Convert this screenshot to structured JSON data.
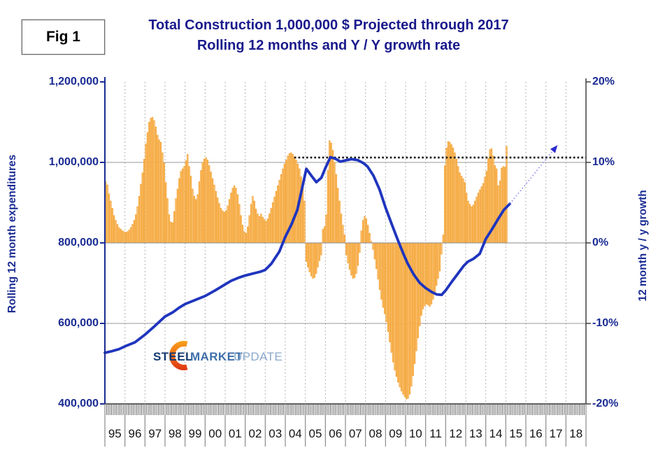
{
  "fig_label": "Fig 1",
  "title": {
    "line1": "Total Construction 1,000,000 $ Projected through 2017",
    "line2": "Rolling 12 months and Y / Y growth rate"
  },
  "axes": {
    "left": {
      "title": "Rolling 12 month expenditures",
      "ticks": [
        "1,200,000",
        "1,000,000",
        "800,000",
        "600,000",
        "400,000"
      ]
    },
    "right": {
      "title": "12 month y / y growth",
      "ticks": [
        "20%",
        "10%",
        "0%",
        "-10%",
        "-20%"
      ]
    },
    "x": {
      "years": [
        "95",
        "96",
        "97",
        "98",
        "99",
        "00",
        "01",
        "02",
        "03",
        "04",
        "05",
        "06",
        "07",
        "08",
        "09",
        "10",
        "11",
        "12",
        "13",
        "14",
        "15",
        "16",
        "17",
        "18"
      ]
    }
  },
  "logo": {
    "part1": "STEEL",
    "part2": "MARKET",
    "part3": "UPDATE"
  },
  "colors": {
    "title_navy": "#1a1a8c",
    "axis_navy": "#1b2c94",
    "bar_fill": "#FCC579",
    "bar_stroke": "#F09619",
    "line_blue": "#1F35BE",
    "projection_blue": "#8080EE",
    "reference_black": "#111111",
    "grid_gray": "#9a9a9a",
    "grid_dash_gray": "#b5b5b5",
    "logo_orange_top": "#F9A11B",
    "logo_orange_bottom": "#E03514",
    "logo_steel": "#153A70",
    "logo_market": "#3F6FA8",
    "logo_update": "#8AA9CC"
  },
  "chart_data": {
    "type": "combo",
    "x_axis": {
      "start_year": 1995,
      "end_year": 2018,
      "frequency": "monthly"
    },
    "left_axis": {
      "label": "Rolling 12 month expenditures",
      "min": 400000,
      "max": 1200000,
      "tick_step": 200000
    },
    "right_axis": {
      "label": "12 month y / y growth",
      "min": -20,
      "max": 20,
      "tick_step": 10,
      "unit": "%"
    },
    "grid": {
      "horizontal": "solid at 10%, 0%, -10%",
      "vertical": "dashed at each year"
    },
    "series": [
      {
        "name": "12 month y / y growth rate",
        "type": "bar",
        "axis": "right",
        "unit": "%",
        "start": "1995-01",
        "frequency": "monthly",
        "values": [
          7.6,
          7.2,
          6.1,
          5.2,
          4.3,
          3.4,
          2.8,
          2.3,
          1.9,
          1.7,
          1.5,
          1.4,
          1.3,
          1.4,
          1.6,
          1.9,
          2.3,
          2.8,
          3.5,
          4.5,
          5.8,
          7.3,
          8.7,
          10.4,
          12.3,
          13.7,
          15.0,
          15.5,
          15.6,
          15.2,
          14.4,
          13.4,
          12.8,
          12.5,
          11.2,
          9.9,
          7.5,
          5.5,
          3.5,
          2.6,
          2.5,
          3.9,
          5.5,
          6.7,
          8.0,
          8.9,
          9.2,
          9.5,
          10.2,
          11.0,
          9.5,
          8.3,
          6.7,
          5.8,
          5.4,
          6.0,
          7.6,
          9.0,
          10.0,
          10.4,
          10.6,
          10.3,
          9.6,
          8.8,
          8.0,
          7.2,
          6.4,
          5.6,
          4.9,
          4.3,
          4.0,
          3.8,
          4.0,
          4.6,
          5.4,
          6.2,
          6.8,
          7.1,
          6.8,
          6.0,
          4.8,
          3.4,
          2.2,
          1.4,
          1.2,
          2.0,
          3.4,
          4.8,
          5.8,
          5.2,
          4.2,
          3.6,
          3.3,
          3.6,
          3.2,
          2.9,
          2.7,
          3.0,
          3.6,
          4.3,
          5.0,
          5.7,
          6.4,
          7.1,
          7.8,
          8.5,
          9.2,
          9.8,
          10.3,
          10.8,
          11.1,
          11.2,
          11.0,
          10.7,
          10.3,
          9.8,
          9.2,
          8.2,
          6.8,
          5.2,
          -2.3,
          -3.0,
          -3.6,
          -4.1,
          -4.4,
          -4.3,
          -3.8,
          -3.0,
          -2.2,
          -1.5,
          1.7,
          2.0,
          3.5,
          9.0,
          12.7,
          12.4,
          11.5,
          10.0,
          8.5,
          6.8,
          5.2,
          3.6,
          2.2,
          1.0,
          -1.5,
          -2.5,
          -3.3,
          -4.0,
          -4.4,
          -4.3,
          -3.8,
          -2.8,
          -1.2,
          1.5,
          2.8,
          3.3,
          3.0,
          2.2,
          1.2,
          0.2,
          -0.8,
          -2.0,
          -3.2,
          -4.5,
          -5.8,
          -7.0,
          -8.0,
          -8.8,
          -9.8,
          -11.0,
          -12.3,
          -13.6,
          -14.8,
          -15.8,
          -16.6,
          -17.3,
          -17.9,
          -18.4,
          -18.8,
          -19.1,
          -19.4,
          -19.3,
          -18.8,
          -17.8,
          -16.5,
          -15.0,
          -13.4,
          -11.8,
          -10.3,
          -9.0,
          -8.2,
          -7.8,
          -7.6,
          -7.7,
          -7.9,
          -7.6,
          -7.0,
          -6.2,
          -5.3,
          -4.4,
          -3.5,
          -1.4,
          1.0,
          9.6,
          11.8,
          12.6,
          12.5,
          12.2,
          11.8,
          11.2,
          10.4,
          9.5,
          8.7,
          8.3,
          8.0,
          7.5,
          6.2,
          5.2,
          4.8,
          4.5,
          4.7,
          5.2,
          5.7,
          6.2,
          6.6,
          7.0,
          7.4,
          8.2,
          8.9,
          10.5,
          11.6,
          11.7,
          10.8,
          9.6,
          9.2,
          7.1,
          7.7,
          9.3,
          9.5,
          9.4,
          12.0
        ]
      },
      {
        "name": "Rolling 12 month expenditures",
        "type": "line",
        "axis": "left",
        "unit": "$1,000,000",
        "x": [
          1995.0,
          1995.35,
          1995.7,
          1996.0,
          1996.5,
          1997.0,
          1997.5,
          1998.0,
          1998.4,
          1998.7,
          1999.0,
          1999.5,
          2000.0,
          2000.5,
          2001.0,
          2001.3,
          2001.7,
          2002.0,
          2002.4,
          2002.8,
          2003.0,
          2003.3,
          2003.7,
          2004.0,
          2004.3,
          2004.6,
          2004.9,
          2005.05,
          2005.3,
          2005.55,
          2005.8,
          2006.0,
          2006.25,
          2006.5,
          2006.75,
          2007.0,
          2007.3,
          2007.6,
          2007.9,
          2008.1,
          2008.4,
          2008.7,
          2009.0,
          2009.3,
          2009.6,
          2009.9,
          2010.1,
          2010.4,
          2010.7,
          2011.0,
          2011.3,
          2011.55,
          2011.8,
          2012.0,
          2012.3,
          2012.6,
          2012.9,
          2013.1,
          2013.4,
          2013.7,
          2014.0,
          2014.3,
          2014.6,
          2014.9,
          2015.1,
          2015.2
        ],
        "values": [
          527000,
          531000,
          536000,
          543000,
          553000,
          572000,
          594000,
          617000,
          628000,
          639000,
          648000,
          658000,
          668000,
          682000,
          697000,
          706000,
          714000,
          719000,
          724000,
          729000,
          733000,
          748000,
          778000,
          815000,
          845000,
          882000,
          950000,
          984000,
          967000,
          951000,
          962000,
          986000,
          1013000,
          1009000,
          1002000,
          1005000,
          1008000,
          1006000,
          998000,
          990000,
          967000,
          933000,
          888000,
          848000,
          809000,
          772000,
          749000,
          722000,
          701000,
          688000,
          678000,
          672000,
          671000,
          682000,
          703000,
          723000,
          743000,
          753000,
          761000,
          773000,
          810000,
          833000,
          858000,
          882000,
          892000,
          897000
        ]
      },
      {
        "name": "Projection arrow through 2017",
        "type": "line",
        "style": "dotted-arrow",
        "axis": "left",
        "x": [
          2015.2,
          2017.45
        ],
        "values": [
          897000,
          1035000
        ]
      },
      {
        "name": "Prior peak reference line",
        "type": "line",
        "style": "dotted",
        "axis": "left",
        "x": [
          2004.45,
          2018.98
        ],
        "values": [
          1012000,
          1012000
        ]
      }
    ]
  }
}
